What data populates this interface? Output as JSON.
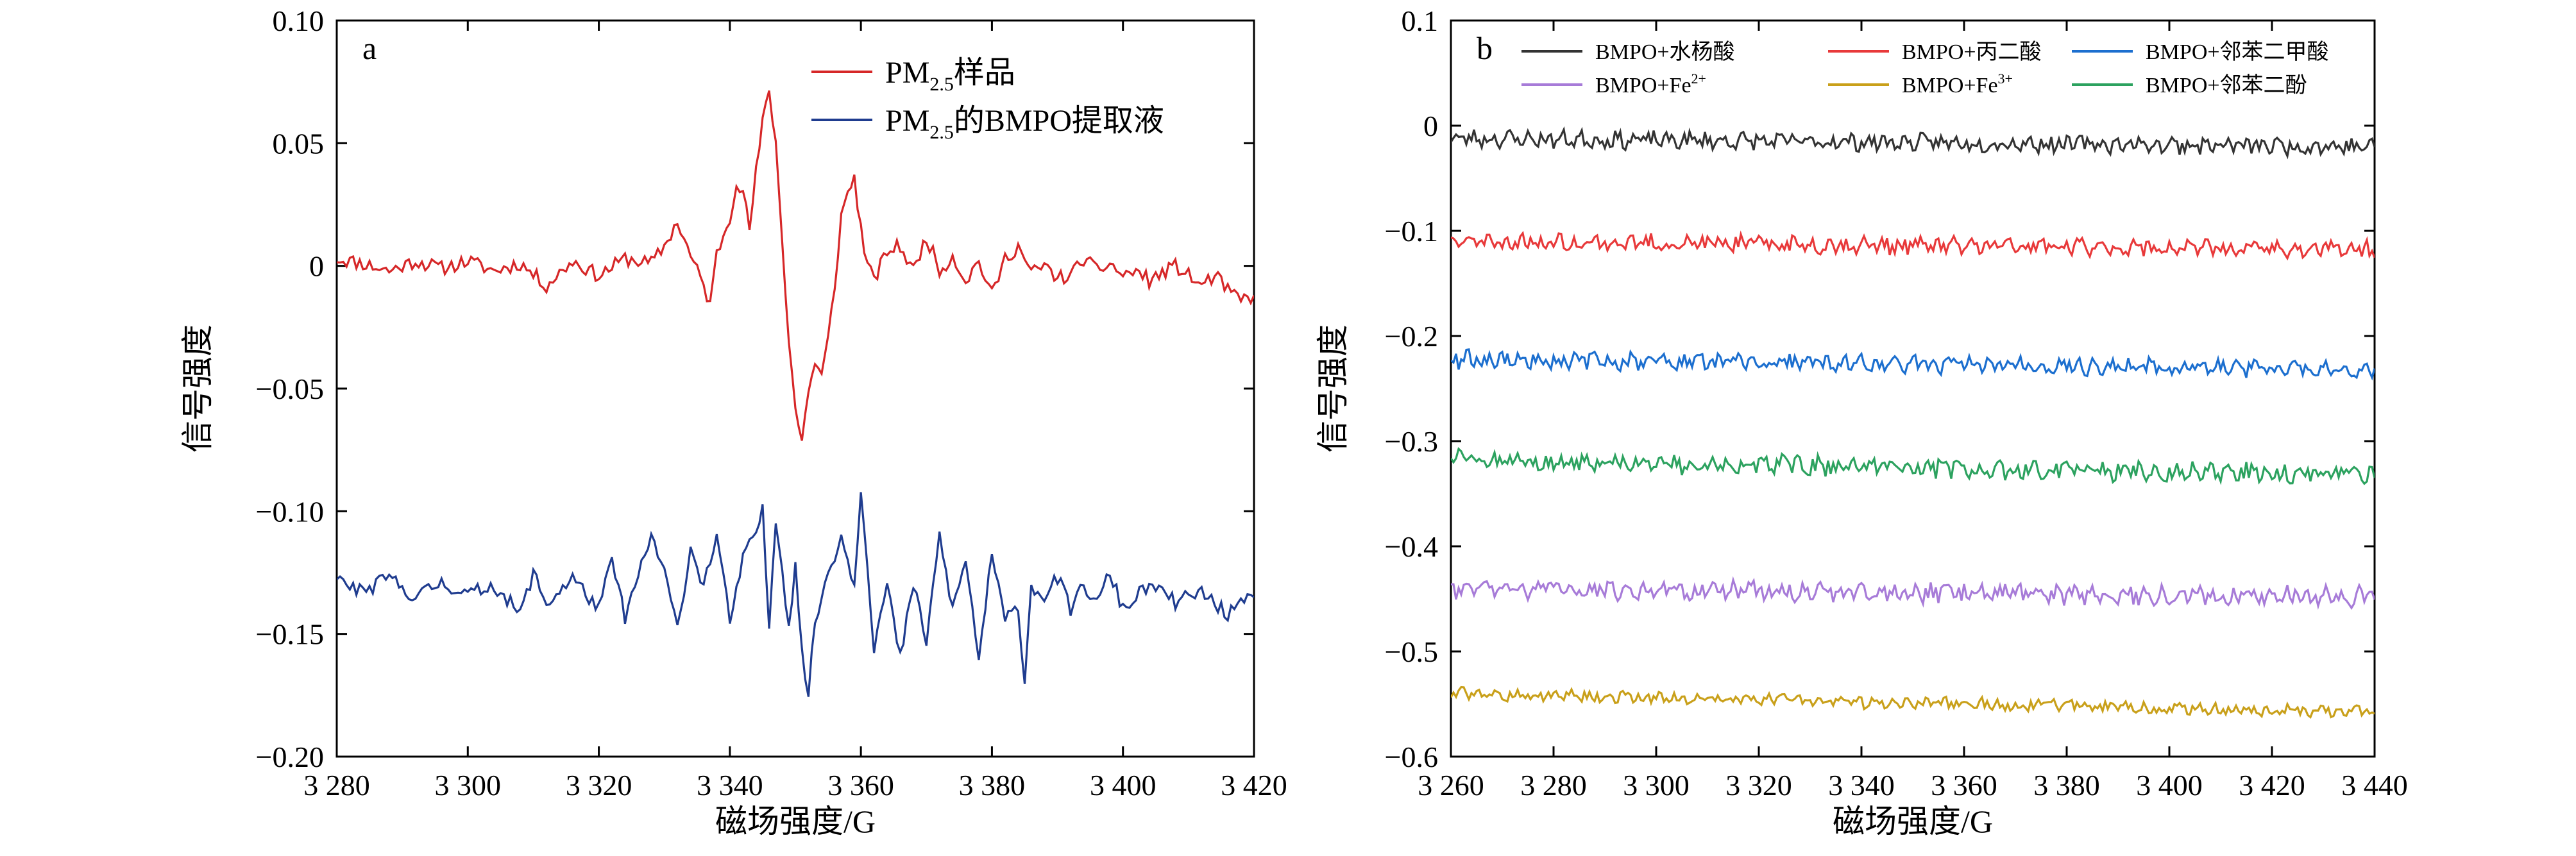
{
  "chart_data": [
    {
      "type": "line",
      "panel_label": "a",
      "xlabel": "磁场强度/G",
      "ylabel": "信号强度",
      "xlim": [
        3280,
        3420
      ],
      "ylim": [
        -0.2,
        0.1
      ],
      "xticks": [
        3280,
        3300,
        3320,
        3340,
        3360,
        3380,
        3400,
        3420
      ],
      "xtick_labels": [
        "3 280",
        "3 300",
        "3 320",
        "3 340",
        "3 360",
        "3 380",
        "3 400",
        "3 420"
      ],
      "yticks": [
        0.1,
        0.05,
        0,
        -0.05,
        -0.1,
        -0.15,
        -0.2
      ],
      "ytick_labels": [
        "0.10",
        "0.05",
        "0",
        "−0.05",
        "−0.10",
        "−0.15",
        "−0.20"
      ],
      "grid": false,
      "legend_position": "top-right",
      "series": [
        {
          "name": "PM2.5样品",
          "legend_parts": [
            "PM",
            "2.5",
            "样品"
          ],
          "color": "#d62728",
          "points": [
            [
              3280,
              0.003
            ],
            [
              3284,
              0.001
            ],
            [
              3288,
              -0.002
            ],
            [
              3292,
              0.002
            ],
            [
              3296,
              -0.001
            ],
            [
              3300,
              0.002
            ],
            [
              3304,
              -0.002
            ],
            [
              3308,
              0.001
            ],
            [
              3312,
              -0.008
            ],
            [
              3316,
              0.002
            ],
            [
              3320,
              -0.004
            ],
            [
              3324,
              0.003
            ],
            [
              3328,
              0.001
            ],
            [
              3330,
              0.008
            ],
            [
              3332,
              0.018
            ],
            [
              3334,
              0.004
            ],
            [
              3336,
              -0.008
            ],
            [
              3337,
              -0.016
            ],
            [
              3338,
              0.005
            ],
            [
              3340,
              0.02
            ],
            [
              3341,
              0.035
            ],
            [
              3342,
              0.03
            ],
            [
              3343,
              0.015
            ],
            [
              3344,
              0.038
            ],
            [
              3345,
              0.058
            ],
            [
              3346,
              0.072
            ],
            [
              3347,
              0.05
            ],
            [
              3348,
              0.01
            ],
            [
              3349,
              -0.03
            ],
            [
              3350,
              -0.058
            ],
            [
              3351,
              -0.072
            ],
            [
              3352,
              -0.05
            ],
            [
              3353,
              -0.04
            ],
            [
              3354,
              -0.045
            ],
            [
              3355,
              -0.03
            ],
            [
              3356,
              -0.008
            ],
            [
              3357,
              0.02
            ],
            [
              3358,
              0.03
            ],
            [
              3359,
              0.036
            ],
            [
              3360,
              0.015
            ],
            [
              3361,
              0.0
            ],
            [
              3362,
              -0.006
            ],
            [
              3364,
              0.006
            ],
            [
              3366,
              0.008
            ],
            [
              3368,
              -0.002
            ],
            [
              3370,
              0.012
            ],
            [
              3372,
              -0.002
            ],
            [
              3374,
              0.004
            ],
            [
              3376,
              -0.006
            ],
            [
              3378,
              0.002
            ],
            [
              3380,
              -0.012
            ],
            [
              3382,
              0.003
            ],
            [
              3384,
              0.008
            ],
            [
              3386,
              -0.003
            ],
            [
              3388,
              0.0
            ],
            [
              3390,
              -0.005
            ],
            [
              3392,
              -0.004
            ],
            [
              3394,
              0.003
            ],
            [
              3396,
              -0.002
            ],
            [
              3398,
              0.001
            ],
            [
              3400,
              -0.004
            ],
            [
              3402,
              -0.002
            ],
            [
              3404,
              -0.006
            ],
            [
              3406,
              -0.003
            ],
            [
              3408,
              0.0
            ],
            [
              3410,
              -0.004
            ],
            [
              3412,
              -0.008
            ],
            [
              3414,
              -0.004
            ],
            [
              3416,
              -0.01
            ],
            [
              3418,
              -0.014
            ],
            [
              3420,
              -0.012
            ]
          ]
        },
        {
          "name": "PM2.5的BMPO提取液",
          "legend_parts": [
            "PM",
            "2.5",
            "的BMPO提取液"
          ],
          "color": "#1f3c8f",
          "points": [
            [
              3280,
              -0.128
            ],
            [
              3284,
              -0.133
            ],
            [
              3288,
              -0.127
            ],
            [
              3292,
              -0.135
            ],
            [
              3296,
              -0.129
            ],
            [
              3300,
              -0.134
            ],
            [
              3304,
              -0.13
            ],
            [
              3308,
              -0.142
            ],
            [
              3310,
              -0.125
            ],
            [
              3312,
              -0.138
            ],
            [
              3316,
              -0.127
            ],
            [
              3320,
              -0.14
            ],
            [
              3322,
              -0.12
            ],
            [
              3324,
              -0.143
            ],
            [
              3326,
              -0.127
            ],
            [
              3328,
              -0.11
            ],
            [
              3330,
              -0.125
            ],
            [
              3332,
              -0.148
            ],
            [
              3334,
              -0.115
            ],
            [
              3336,
              -0.13
            ],
            [
              3338,
              -0.11
            ],
            [
              3340,
              -0.145
            ],
            [
              3342,
              -0.12
            ],
            [
              3344,
              -0.108
            ],
            [
              3345,
              -0.1
            ],
            [
              3346,
              -0.147
            ],
            [
              3347,
              -0.102
            ],
            [
              3348,
              -0.123
            ],
            [
              3349,
              -0.148
            ],
            [
              3350,
              -0.12
            ],
            [
              3351,
              -0.158
            ],
            [
              3352,
              -0.175
            ],
            [
              3353,
              -0.145
            ],
            [
              3355,
              -0.125
            ],
            [
              3357,
              -0.11
            ],
            [
              3359,
              -0.13
            ],
            [
              3360,
              -0.09
            ],
            [
              3361,
              -0.122
            ],
            [
              3362,
              -0.155
            ],
            [
              3364,
              -0.13
            ],
            [
              3366,
              -0.16
            ],
            [
              3368,
              -0.13
            ],
            [
              3370,
              -0.153
            ],
            [
              3372,
              -0.11
            ],
            [
              3374,
              -0.14
            ],
            [
              3376,
              -0.12
            ],
            [
              3378,
              -0.16
            ],
            [
              3380,
              -0.118
            ],
            [
              3382,
              -0.145
            ],
            [
              3384,
              -0.138
            ],
            [
              3385,
              -0.17
            ],
            [
              3386,
              -0.13
            ],
            [
              3388,
              -0.135
            ],
            [
              3390,
              -0.127
            ],
            [
              3392,
              -0.14
            ],
            [
              3394,
              -0.13
            ],
            [
              3396,
              -0.138
            ],
            [
              3398,
              -0.125
            ],
            [
              3400,
              -0.14
            ],
            [
              3404,
              -0.13
            ],
            [
              3408,
              -0.137
            ],
            [
              3412,
              -0.133
            ],
            [
              3416,
              -0.142
            ],
            [
              3420,
              -0.135
            ]
          ]
        }
      ]
    },
    {
      "type": "line",
      "panel_label": "b",
      "xlabel": "磁场强度/G",
      "ylabel": "信号强度",
      "xlim": [
        3260,
        3440
      ],
      "ylim": [
        -0.6,
        0.1
      ],
      "xticks": [
        3260,
        3280,
        3300,
        3320,
        3340,
        3360,
        3380,
        3400,
        3420,
        3440
      ],
      "xtick_labels": [
        "3 260",
        "3 280",
        "3 300",
        "3 320",
        "3 340",
        "3 360",
        "3 380",
        "3 400",
        "3 420",
        "3 440"
      ],
      "yticks": [
        0.1,
        0,
        -0.1,
        -0.2,
        -0.3,
        -0.4,
        -0.5,
        -0.6
      ],
      "ytick_labels": [
        "0.1",
        "0",
        "−0.1",
        "−0.2",
        "−0.3",
        "−0.4",
        "−0.5",
        "−0.6"
      ],
      "grid": false,
      "legend_position": "top",
      "series": [
        {
          "name": "BMPO+水杨酸",
          "legend_parts": [
            "BMPO+水杨酸",
            ""
          ],
          "color": "#333333",
          "x": [
            3260,
            3440
          ],
          "baseline": [
            -0.012,
            -0.02
          ],
          "noise": 0.007
        },
        {
          "name": "BMPO+丙二酸",
          "legend_parts": [
            "BMPO+丙二酸",
            ""
          ],
          "color": "#e8393a",
          "x": [
            3260,
            3440
          ],
          "baseline": [
            -0.11,
            -0.118
          ],
          "noise": 0.007
        },
        {
          "name": "BMPO+邻苯二甲酸",
          "legend_parts": [
            "BMPO+邻苯二甲酸",
            ""
          ],
          "color": "#1c6fcf",
          "x": [
            3260,
            3440
          ],
          "baseline": [
            -0.222,
            -0.232
          ],
          "noise": 0.007
        },
        {
          "name": "BMPO+Fe2+",
          "legend_parts": [
            "BMPO+Fe",
            "2+"
          ],
          "color": "#a77bd8",
          "x": [
            3260,
            3440
          ],
          "baseline": [
            -0.44,
            -0.448
          ],
          "noise": 0.008
        },
        {
          "name": "BMPO+Fe3+",
          "legend_parts": [
            "BMPO+Fe",
            "3+"
          ],
          "color": "#c9a01a",
          "x": [
            3260,
            3440
          ],
          "baseline": [
            -0.54,
            -0.558
          ],
          "noise": 0.005
        },
        {
          "name": "BMPO+邻苯二酚",
          "legend_parts": [
            "BMPO+邻苯二酚",
            ""
          ],
          "color": "#2ca25f",
          "x": [
            3260,
            3440
          ],
          "baseline": [
            -0.318,
            -0.332
          ],
          "noise": 0.008
        }
      ]
    }
  ]
}
